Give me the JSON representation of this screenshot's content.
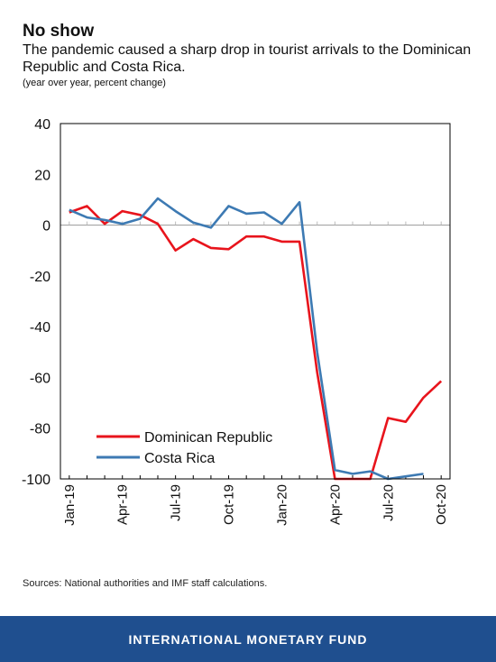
{
  "header": {
    "title": "No show",
    "subtitle": "The pandemic caused a sharp drop in tourist arrivals to the Dominican Republic and Costa Rica.",
    "note": "(year over year, percent change)"
  },
  "source": "Sources: National authorities and IMF staff calculations.",
  "footer": {
    "org": "INTERNATIONAL MONETARY FUND"
  },
  "chart_data": {
    "type": "line",
    "categories": [
      "Jan-19",
      "Feb-19",
      "Mar-19",
      "Apr-19",
      "May-19",
      "Jun-19",
      "Jul-19",
      "Aug-19",
      "Sep-19",
      "Oct-19",
      "Nov-19",
      "Dec-19",
      "Jan-20",
      "Feb-20",
      "Mar-20",
      "Apr-20",
      "May-20",
      "Jun-20",
      "Jul-20",
      "Aug-20",
      "Sep-20",
      "Oct-20"
    ],
    "tick_labels": [
      "Jan-19",
      "Apr-19",
      "Jul-19",
      "Oct-19",
      "Jan-20",
      "Apr-20",
      "Jul-20",
      "Oct-20"
    ],
    "ylim": [
      -100,
      40
    ],
    "yticks": [
      40,
      20,
      0,
      -20,
      -40,
      -60,
      -80,
      -100
    ],
    "legend_position": "lower-left",
    "series": [
      {
        "name": "Dominican Republic",
        "color": "#e8141c",
        "values": [
          5,
          7.5,
          0.5,
          5.5,
          4,
          0.5,
          -10,
          -5.5,
          -9,
          -9.5,
          -4.5,
          -4.5,
          -6.5,
          -6.5,
          -58,
          -100,
          -100,
          -100,
          -76,
          -77.5,
          -68,
          -61.5
        ]
      },
      {
        "name": "Costa Rica",
        "color": "#3d7ab3",
        "values": [
          6,
          3,
          2,
          0.5,
          2.5,
          10.5,
          5.5,
          1,
          -1,
          7.5,
          4.5,
          5,
          0.5,
          9,
          -50,
          -96.5,
          -98,
          -97,
          -100,
          -99,
          -98,
          null
        ]
      }
    ]
  }
}
